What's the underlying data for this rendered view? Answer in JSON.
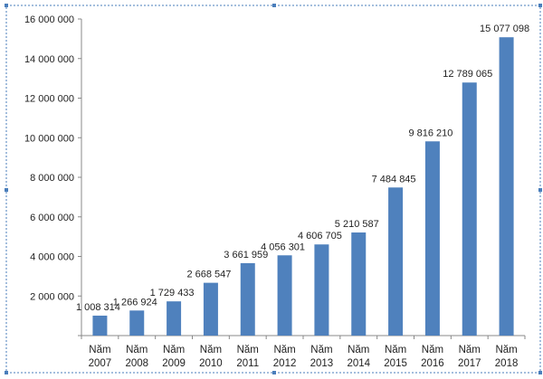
{
  "chart_data": {
    "type": "bar",
    "categories": [
      [
        "Năm",
        "2007"
      ],
      [
        "Năm",
        "2008"
      ],
      [
        "Năm",
        "2009"
      ],
      [
        "Năm",
        "2010"
      ],
      [
        "Năm",
        "2011"
      ],
      [
        "Năm",
        "2012"
      ],
      [
        "Năm",
        "2013"
      ],
      [
        "Năm",
        "2014"
      ],
      [
        "Năm",
        "2015"
      ],
      [
        "Năm",
        "2016"
      ],
      [
        "Năm",
        "2017"
      ],
      [
        "Năm",
        "2018"
      ]
    ],
    "values": [
      1008314,
      1266924,
      1729433,
      2668547,
      3661959,
      4056301,
      4606705,
      5210587,
      7484845,
      9816210,
      12789065,
      15077098
    ],
    "data_labels": [
      "1 008 314",
      "1 266 924",
      "1 729 433",
      "2 668 547",
      "3 661 959",
      "4 056 301",
      "4 606 705",
      "5 210 587",
      "7 484 845",
      "9 816 210",
      "12 789 065",
      "15 077 098"
    ],
    "yticks": [
      0,
      2000000,
      4000000,
      6000000,
      8000000,
      10000000,
      12000000,
      14000000,
      16000000
    ],
    "ytick_labels": [
      "",
      "2 000 000",
      "4 000 000",
      "6 000 000",
      "8 000 000",
      "10 000 000",
      "12 000 000",
      "14 000 000",
      "16 000 000"
    ],
    "ylim": [
      0,
      16000000
    ],
    "title": "",
    "xlabel": "",
    "ylabel": "",
    "grid": false,
    "legend": "none",
    "colors": {
      "bar": "#4F81BD",
      "axis": "#888888",
      "frame": "#4A7EBB"
    }
  }
}
